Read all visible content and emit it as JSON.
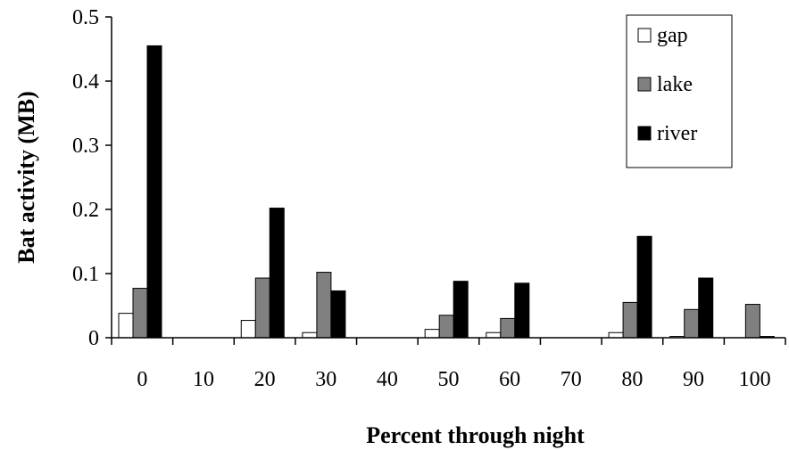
{
  "chart_data": {
    "type": "bar",
    "title": "",
    "xlabel": "Percent through night",
    "ylabel": "Bat activity (MB)",
    "ylim": [
      0,
      0.5
    ],
    "yticks": [
      "0",
      "0.1",
      "0.2",
      "0.3",
      "0.4",
      "0.5"
    ],
    "categories": [
      "0",
      "10",
      "20",
      "30",
      "40",
      "50",
      "60",
      "70",
      "80",
      "90",
      "100"
    ],
    "series": [
      {
        "name": "gap",
        "color": "#ffffff",
        "values": [
          0.038,
          0,
          0.027,
          0.008,
          0,
          0.013,
          0.008,
          0,
          0.008,
          0.002,
          0
        ]
      },
      {
        "name": "lake",
        "color": "#808080",
        "values": [
          0.077,
          0,
          0.093,
          0.102,
          0,
          0.035,
          0.03,
          0,
          0.055,
          0.044,
          0.052
        ]
      },
      {
        "name": "river",
        "color": "#000000",
        "values": [
          0.455,
          0,
          0.202,
          0.073,
          0,
          0.088,
          0.085,
          0,
          0.158,
          0.093,
          0.002
        ]
      }
    ],
    "grid": false,
    "legend": "top-right"
  }
}
